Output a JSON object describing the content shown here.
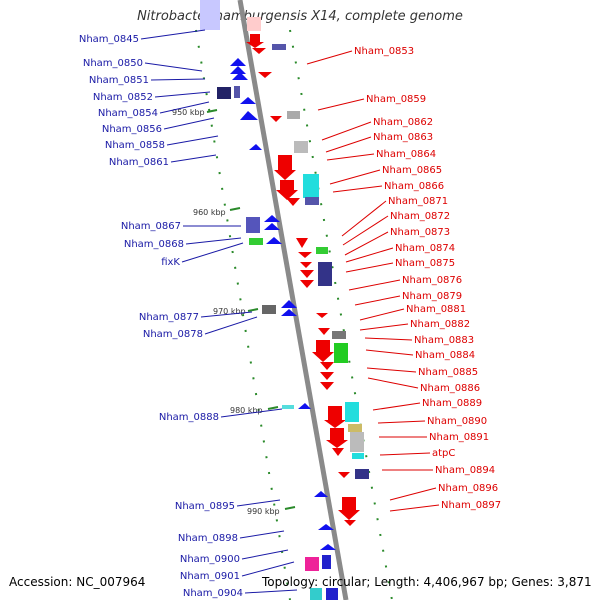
{
  "title": "Nitrobacter hamburgensis X14, complete genome",
  "footer": {
    "accession": "Accession: NC_007964",
    "topology": "Topology: circular; Length: 4,406,967 bp; Genes: 3,871"
  },
  "colors": {
    "left_label": "#1a1aa6",
    "right_label": "#dd0000",
    "backbone": "#888888",
    "tick": "#228822",
    "strand_plus": "#ee0000",
    "strand_minus": "#1111ee"
  },
  "scale_ticks": [
    "950 kbp",
    "960 kbp",
    "970 kbp",
    "980 kbp",
    "990 kbp"
  ],
  "left_labels": [
    "Nham_0845",
    "Nham_0850",
    "Nham_0851",
    "Nham_0852",
    "Nham_0854",
    "Nham_0856",
    "Nham_0858",
    "Nham_0861",
    "Nham_0867",
    "Nham_0868",
    "fixK",
    "Nham_0877",
    "Nham_0878",
    "Nham_0888",
    "Nham_0895",
    "Nham_0898",
    "Nham_0900",
    "Nham_0901",
    "Nham_0904"
  ],
  "right_labels": [
    "Nham_0853",
    "Nham_0859",
    "Nham_0862",
    "Nham_0863",
    "Nham_0864",
    "Nham_0865",
    "Nham_0866",
    "Nham_0871",
    "Nham_0872",
    "Nham_0873",
    "Nham_0874",
    "Nham_0875",
    "Nham_0876",
    "Nham_0879",
    "Nham_0881",
    "Nham_0882",
    "Nham_0883",
    "Nham_0884",
    "Nham_0885",
    "Nham_0886",
    "Nham_0889",
    "Nham_0890",
    "Nham_0891",
    "atpC",
    "Nham_0894",
    "Nham_0896",
    "Nham_0897"
  ]
}
